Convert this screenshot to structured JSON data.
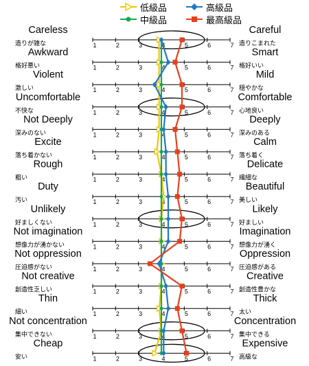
{
  "chart_data": {
    "type": "line",
    "orientation": "vertical-profile",
    "scale": [
      1,
      2,
      3,
      4,
      5,
      6,
      7
    ],
    "legend": [
      {
        "label": "低級品",
        "color": "#f5c400",
        "marker": "triangle-right"
      },
      {
        "label": "中級品",
        "color": "#1aa84a",
        "marker": "circle"
      },
      {
        "label": "高級品",
        "color": "#1f78c8",
        "marker": "diamond"
      },
      {
        "label": "最高級品",
        "color": "#e8401c",
        "marker": "square"
      }
    ],
    "scales": [
      {
        "left_en": "Careless",
        "left_jp": "造りが雑な",
        "right_en": "Careful",
        "right_jp": "造りこまれた",
        "highlight": true
      },
      {
        "left_en": "Awkward",
        "left_jp": "格好悪い",
        "right_en": "Smart",
        "right_jp": "格好いい",
        "highlight": false
      },
      {
        "left_en": "Violent",
        "left_jp": "激しい",
        "right_en": "Mild",
        "right_jp": "穏やかな",
        "highlight": false
      },
      {
        "left_en": "Uncomfortable",
        "left_jp": "不快な",
        "right_en": "Comfortable",
        "right_jp": "心地良い",
        "highlight": true
      },
      {
        "left_en": "Not Deeply",
        "left_jp": "深みのない",
        "right_en": "Deeply",
        "right_jp": "深みのある",
        "highlight": false
      },
      {
        "left_en": "Excite",
        "left_jp": "落ち着かない",
        "right_en": "Calm",
        "right_jp": "落ち着く",
        "highlight": false
      },
      {
        "left_en": "Rough",
        "left_jp": "粗い",
        "right_en": "Delicate",
        "right_jp": "繊細な",
        "highlight": false
      },
      {
        "left_en": "Duty",
        "left_jp": "汚い",
        "right_en": "Beautiful",
        "right_jp": "美しい",
        "highlight": false
      },
      {
        "left_en": "Unlikely",
        "left_jp": "好ましくない",
        "right_en": "Likely",
        "right_jp": "好ましい",
        "highlight": true
      },
      {
        "left_en": "Not imagination",
        "left_jp": "想像力が湧かない",
        "right_en": "Imagination",
        "right_jp": "想像力が湧く",
        "highlight": false
      },
      {
        "left_en": "Not oppression",
        "left_jp": "圧迫感がない",
        "right_en": "Oppression",
        "right_jp": "圧迫感がある",
        "highlight": false
      },
      {
        "left_en": "Not creative",
        "left_jp": "創造性乏しい",
        "right_en": "Creative",
        "right_jp": "創造性豊かな",
        "highlight": false
      },
      {
        "left_en": "Thin",
        "left_jp": "細い",
        "right_en": "Thick",
        "right_jp": "太い",
        "highlight": false
      },
      {
        "left_en": "Not concentration",
        "left_jp": "集中できない",
        "right_en": "Concentration",
        "right_jp": "集中できる",
        "highlight": true
      },
      {
        "left_en": "Cheap",
        "left_jp": "安い",
        "right_en": "Expensive",
        "right_jp": "高級な",
        "highlight": true
      }
    ],
    "series": [
      {
        "name": "低級品",
        "values": [
          3.9,
          3.9,
          3.9,
          3.9,
          3.9,
          3.8,
          4.0,
          4.1,
          4.0,
          4.0,
          4.0,
          4.0,
          3.9,
          4.0,
          3.7
        ]
      },
      {
        "name": "中級品",
        "values": [
          4.0,
          4.0,
          4.0,
          4.0,
          4.0,
          4.0,
          4.0,
          4.0,
          4.0,
          4.0,
          4.0,
          4.0,
          4.0,
          4.0,
          4.0
        ]
      },
      {
        "name": "高級品",
        "values": [
          4.0,
          4.3,
          3.7,
          4.2,
          4.1,
          4.2,
          4.2,
          4.3,
          4.3,
          4.3,
          3.9,
          4.2,
          4.3,
          4.1,
          4.1
        ]
      },
      {
        "name": "最高級品",
        "values": [
          4.9,
          4.6,
          4.9,
          4.9,
          4.6,
          4.7,
          4.8,
          4.7,
          4.9,
          4.8,
          3.5,
          4.9,
          4.7,
          4.9,
          5.1
        ]
      }
    ]
  }
}
